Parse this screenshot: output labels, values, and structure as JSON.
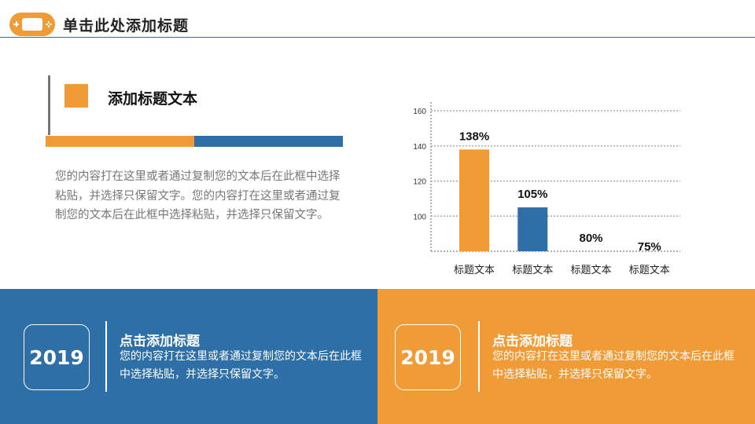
{
  "header": {
    "title": "单击此处添加标题",
    "logo_icon": "gamepad-icon"
  },
  "section": {
    "title": "添加标题文本",
    "body": "您的内容打在这里或者通过复制您的文本后在此框中选择粘贴，并选择只保留文字。您的内容打在这里或者通过复制您的文本后在此框中选择粘贴，并选择只保留文字。"
  },
  "panels": [
    {
      "year": "2019",
      "title": "点击添加标题",
      "desc": "您的内容打在这里或者通过复制您的文本后在此框中选择粘贴，并选择只保留文字。"
    },
    {
      "year": "2019",
      "title": "点击添加标题",
      "desc": "您的内容打在这里或者通过复制您的文本后在此框中选择粘贴，并选择只保留文字。"
    }
  ],
  "colors": {
    "orange": "#f09b36",
    "blue": "#2e6fa7",
    "gray": "#808080",
    "light_blue": "#6aa9dc"
  },
  "chart_data": {
    "type": "bar",
    "categories": [
      "标题文本",
      "标题文本",
      "标题文本",
      "标题文本"
    ],
    "values": [
      138,
      105,
      80,
      75
    ],
    "data_labels": [
      "138%",
      "105%",
      "80%",
      "75%"
    ],
    "bar_colors": [
      "#f09b36",
      "#2e6fa7",
      "#808080",
      "#6aa9dc"
    ],
    "y_ticks": [
      100,
      120,
      140,
      160
    ],
    "ylim": [
      80,
      165
    ],
    "grid": true
  }
}
